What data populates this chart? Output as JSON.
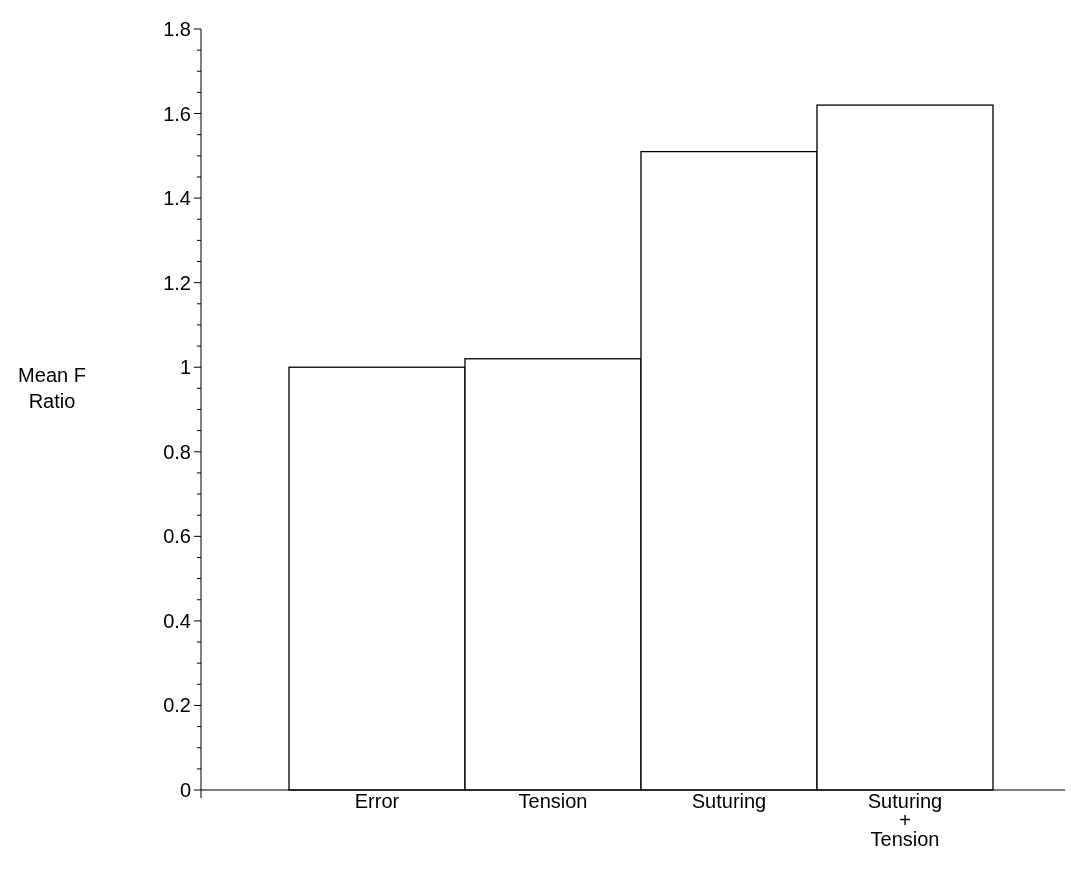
{
  "chart_data": {
    "type": "bar",
    "ylabel": "Mean F\nRatio",
    "categories": [
      "Error",
      "Tension",
      "Suturing",
      "Suturing\n+\nTension"
    ],
    "values": [
      1.0,
      1.02,
      1.51,
      1.62
    ],
    "color": "#ffffff",
    "ylim": [
      0,
      1.8
    ],
    "yticks": [
      0,
      {
        "value": 0.05,
        "label": null
      },
      {
        "value": 0.1,
        "label": null
      },
      {
        "value": 0.15,
        "label": null
      },
      0.2,
      {
        "value": 0.25,
        "label": null
      },
      {
        "value": 0.3,
        "label": null
      },
      {
        "value": 0.35,
        "label": null
      },
      0.4,
      {
        "value": 0.45,
        "label": null
      },
      {
        "value": 0.5,
        "label": null
      },
      {
        "value": 0.55,
        "label": null
      },
      0.6,
      {
        "value": 0.65,
        "label": null
      },
      {
        "value": 0.7,
        "label": null
      },
      {
        "value": 0.75,
        "label": null
      },
      0.8,
      {
        "value": 0.85,
        "label": null
      },
      {
        "value": 0.9,
        "label": null
      },
      {
        "value": 0.95,
        "label": null
      },
      1,
      {
        "value": 1.05,
        "label": null
      },
      {
        "value": 1.1,
        "label": null
      },
      {
        "value": 1.15,
        "label": null
      },
      1.2,
      {
        "value": 1.25,
        "label": null
      },
      {
        "value": 1.3,
        "label": null
      },
      {
        "value": 1.35,
        "label": null
      },
      1.4,
      {
        "value": 1.45,
        "label": null
      },
      {
        "value": 1.5,
        "label": null
      },
      {
        "value": 1.55,
        "label": null
      },
      1.6,
      {
        "value": 1.65,
        "label": null
      },
      {
        "value": 1.7,
        "label": null
      },
      {
        "value": 1.75,
        "label": null
      },
      1.8
    ],
    "grid": false
  }
}
